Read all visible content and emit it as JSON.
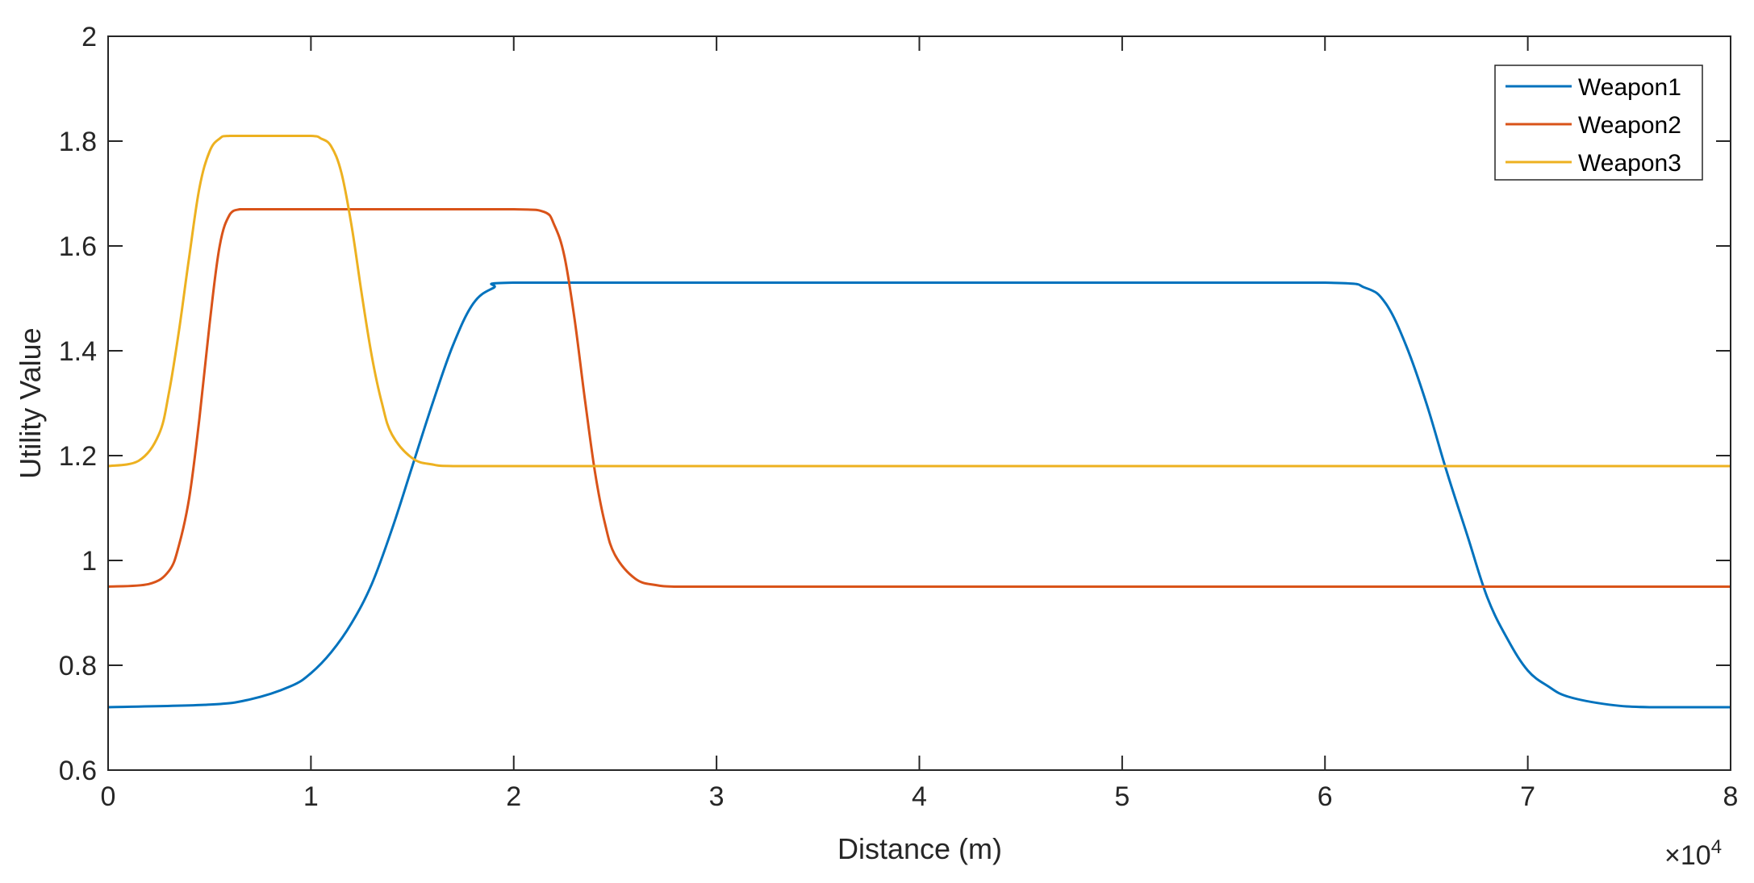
{
  "chart_data": {
    "type": "line",
    "xlabel": "Distance (m)",
    "ylabel": "Utility Value",
    "x_exponent_label": "×10",
    "x_exponent_power": "4",
    "xlim": [
      0,
      8
    ],
    "ylim": [
      0.6,
      2
    ],
    "xticks": [
      "0",
      "1",
      "2",
      "3",
      "4",
      "5",
      "6",
      "7",
      "8"
    ],
    "yticks": [
      "0.6",
      "0.8",
      "1",
      "1.2",
      "1.4",
      "1.6",
      "1.8",
      "2"
    ],
    "grid": false,
    "legend_position": "top-right",
    "series": [
      {
        "name": "Weapon1",
        "color": "#0072BD",
        "x": [
          0,
          0.5,
          0.7,
          0.9,
          1.0,
          1.1,
          1.2,
          1.3,
          1.4,
          1.5,
          1.6,
          1.7,
          1.8,
          1.9,
          2.0,
          3,
          4,
          5,
          6.0,
          6.2,
          6.3,
          6.4,
          6.5,
          6.6,
          6.7,
          6.8,
          6.9,
          7.0,
          7.1,
          7.2,
          7.4,
          7.6,
          8
        ],
        "y": [
          0.72,
          0.725,
          0.735,
          0.76,
          0.785,
          0.825,
          0.88,
          0.955,
          1.06,
          1.18,
          1.3,
          1.41,
          1.49,
          1.52,
          1.53,
          1.53,
          1.53,
          1.53,
          1.53,
          1.52,
          1.49,
          1.41,
          1.3,
          1.17,
          1.05,
          0.93,
          0.85,
          0.79,
          0.76,
          0.74,
          0.725,
          0.72,
          0.72
        ]
      },
      {
        "name": "Weapon2",
        "color": "#D95319",
        "x": [
          0,
          0.2,
          0.3,
          0.35,
          0.4,
          0.45,
          0.5,
          0.55,
          0.6,
          0.65,
          0.7,
          1,
          1.5,
          2.0,
          2.15,
          2.2,
          2.25,
          2.3,
          2.35,
          2.4,
          2.45,
          2.5,
          2.6,
          2.7,
          2.8,
          3,
          4,
          5,
          6,
          7,
          8
        ],
        "y": [
          0.95,
          0.955,
          0.98,
          1.03,
          1.12,
          1.27,
          1.45,
          1.6,
          1.66,
          1.67,
          1.67,
          1.67,
          1.67,
          1.67,
          1.665,
          1.64,
          1.58,
          1.46,
          1.31,
          1.17,
          1.07,
          1.01,
          0.965,
          0.953,
          0.95,
          0.95,
          0.95,
          0.95,
          0.95,
          0.95,
          0.95
        ]
      },
      {
        "name": "Weapon3",
        "color": "#EDB120",
        "x": [
          0,
          0.15,
          0.25,
          0.3,
          0.35,
          0.4,
          0.45,
          0.5,
          0.55,
          0.6,
          0.8,
          1.0,
          1.05,
          1.1,
          1.15,
          1.2,
          1.25,
          1.3,
          1.35,
          1.4,
          1.5,
          1.6,
          1.7,
          2,
          3,
          4,
          5,
          6,
          7,
          8
        ],
        "y": [
          1.18,
          1.19,
          1.24,
          1.32,
          1.44,
          1.58,
          1.71,
          1.78,
          1.805,
          1.81,
          1.81,
          1.81,
          1.805,
          1.79,
          1.74,
          1.64,
          1.51,
          1.39,
          1.3,
          1.24,
          1.195,
          1.183,
          1.18,
          1.18,
          1.18,
          1.18,
          1.18,
          1.18,
          1.18,
          1.18
        ]
      }
    ]
  }
}
